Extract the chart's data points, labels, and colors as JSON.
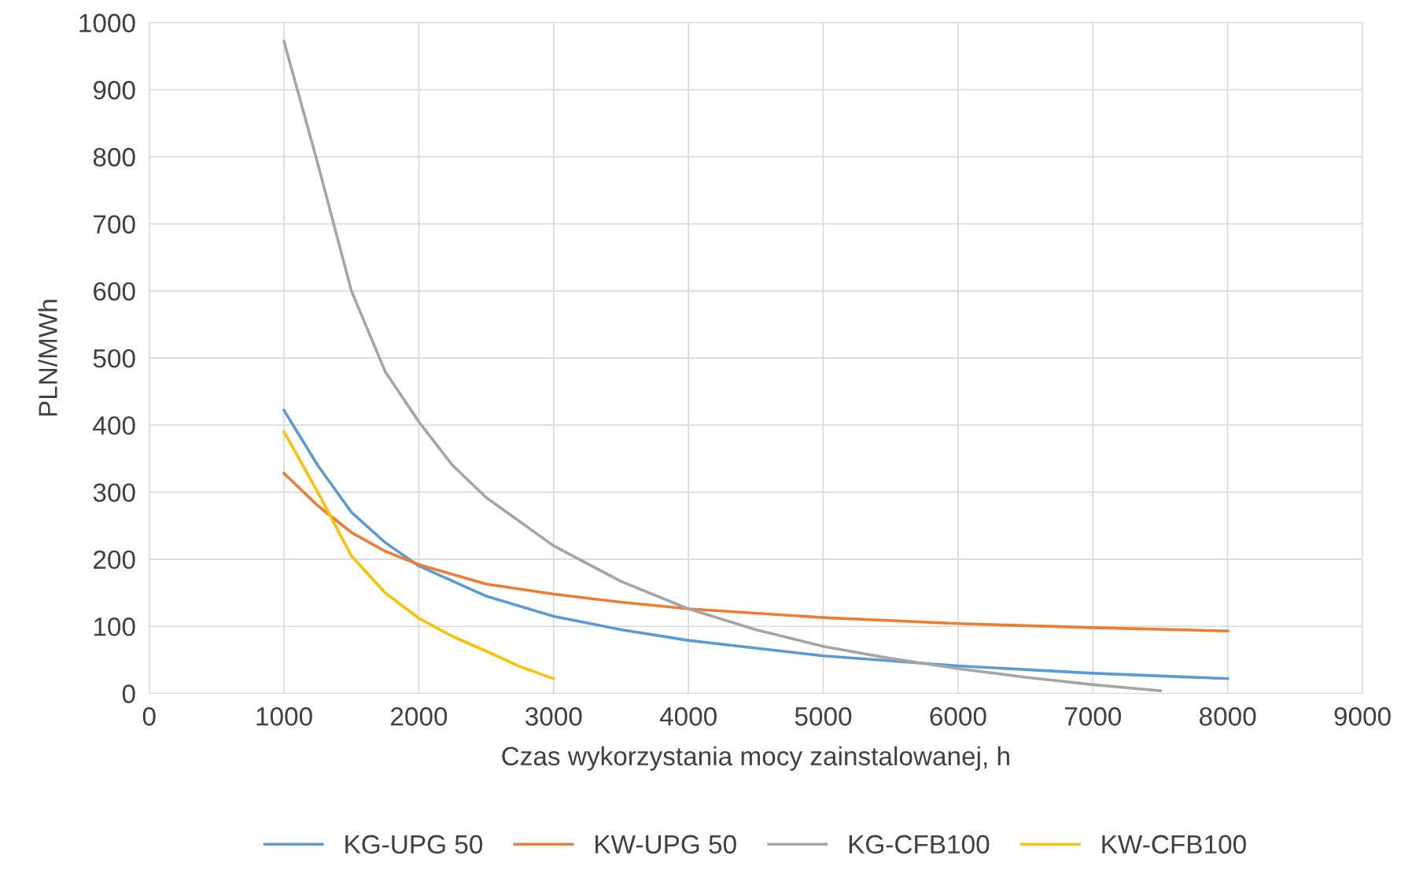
{
  "chart_data": {
    "type": "line",
    "xlabel": "Czas wykorzystania mocy zainstalowanej, h",
    "ylabel": "PLN/MWh",
    "xlim": [
      0,
      9000
    ],
    "xticks": [
      0,
      1000,
      2000,
      3000,
      4000,
      5000,
      6000,
      7000,
      8000,
      9000
    ],
    "ylim": [
      0,
      1000
    ],
    "yticks": [
      0,
      100,
      200,
      300,
      400,
      500,
      600,
      700,
      800,
      900,
      1000
    ],
    "grid": true,
    "legend": "bottom",
    "marker": "none",
    "line_style": "solid",
    "series": [
      {
        "name": "KG-UPG 50",
        "color": "#5b9bd5",
        "x": [
          1000,
          1250,
          1500,
          1750,
          2000,
          2500,
          3000,
          3500,
          4000,
          5000,
          6000,
          7000,
          8000
        ],
        "values": [
          422,
          340,
          270,
          225,
          190,
          145,
          115,
          95,
          79,
          56,
          41,
          30,
          22
        ]
      },
      {
        "name": "KW-UPG 50",
        "color": "#ed7d31",
        "x": [
          1000,
          1250,
          1500,
          1750,
          2000,
          2500,
          3000,
          3500,
          4000,
          5000,
          6000,
          7000,
          8000
        ],
        "values": [
          328,
          280,
          240,
          212,
          192,
          163,
          148,
          136,
          126,
          113,
          104,
          98,
          93
        ]
      },
      {
        "name": "KG-CFB100",
        "color": "#a5a5a5",
        "x": [
          1000,
          1250,
          1500,
          1750,
          2000,
          2250,
          2500,
          3000,
          3500,
          4000,
          4500,
          5000,
          5500,
          6000,
          6500,
          7000,
          7500
        ],
        "values": [
          972,
          790,
          600,
          480,
          405,
          340,
          292,
          220,
          167,
          126,
          95,
          70,
          52,
          37,
          24,
          13,
          4
        ]
      },
      {
        "name": "KW-CFB100",
        "color": "#ffc000",
        "x": [
          1000,
          1250,
          1500,
          1750,
          2000,
          2250,
          2500,
          2750,
          3000
        ],
        "values": [
          390,
          300,
          205,
          150,
          112,
          85,
          63,
          40,
          22
        ]
      }
    ]
  }
}
